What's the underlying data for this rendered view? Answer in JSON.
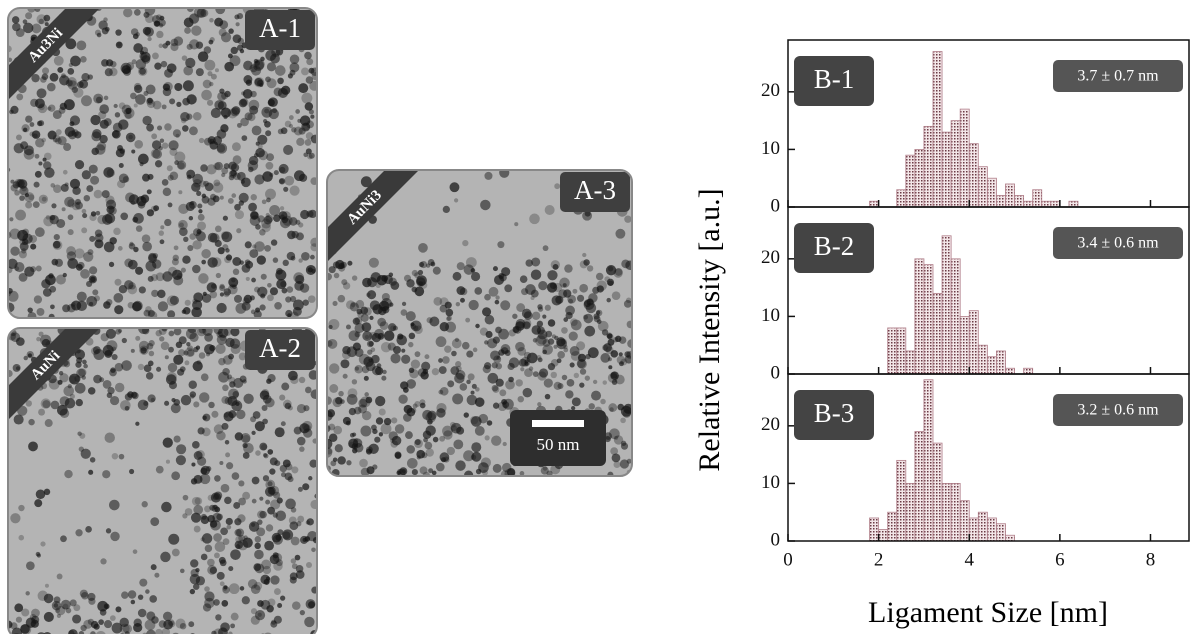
{
  "images": [
    {
      "label": "A-1",
      "composition": "Au3Ni"
    },
    {
      "label": "A-2",
      "composition": "AuNi"
    },
    {
      "label": "A-3",
      "composition": "AuNi3",
      "scale_bar": "50 nm"
    }
  ],
  "figure": {
    "xlabel": "Ligament Size [nm]",
    "ylabel": "Relative Intensity [a.u.]"
  },
  "chart_data": [
    {
      "type": "histogram",
      "title": "B-1",
      "annotation": "3.7 ± 0.7 nm",
      "color": "#b07f8a",
      "bins": [
        1.8,
        2.0,
        2.2,
        2.4,
        2.6,
        2.8,
        3.0,
        3.2,
        3.4,
        3.6,
        3.8,
        4.0,
        4.2,
        4.4,
        4.6,
        4.8,
        5.0,
        5.2,
        5.4,
        5.6,
        5.8,
        6.0,
        6.2,
        6.4
      ],
      "values": [
        1,
        0,
        0,
        3,
        9,
        10,
        14,
        27,
        13,
        15,
        17,
        11,
        7,
        5,
        2,
        4,
        2,
        1,
        3,
        1,
        1,
        0,
        1
      ],
      "xlim": [
        0,
        8.85
      ],
      "xticks": [
        0,
        2,
        4,
        6,
        8
      ],
      "ylim": [
        0,
        29
      ],
      "yticks": [
        0,
        10,
        20
      ]
    },
    {
      "type": "histogram",
      "title": "B-2",
      "annotation": "3.4 ± 0.6 nm",
      "color": "#b07f8a",
      "bins": [
        1.8,
        2.0,
        2.2,
        2.4,
        2.6,
        2.8,
        3.0,
        3.2,
        3.4,
        3.6,
        3.8,
        4.0,
        4.2,
        4.4,
        4.6,
        4.8,
        5.0,
        5.2,
        5.4,
        5.6,
        5.8,
        6.0,
        6.2,
        6.4
      ],
      "values": [
        0,
        0,
        8,
        8,
        4,
        20,
        19,
        14,
        24,
        20,
        10,
        11,
        5,
        3,
        4,
        1,
        0,
        1,
        0,
        0,
        0,
        0,
        0
      ],
      "xlim": [
        0,
        8.85
      ],
      "xticks": [
        0,
        2,
        4,
        6,
        8
      ],
      "ylim": [
        0,
        29
      ],
      "yticks": [
        0,
        10,
        20
      ]
    },
    {
      "type": "histogram",
      "title": "B-3",
      "annotation": "3.2 ± 0.6 nm",
      "color": "#b07f8a",
      "bins": [
        1.8,
        2.0,
        2.2,
        2.4,
        2.6,
        2.8,
        3.0,
        3.2,
        3.4,
        3.6,
        3.8,
        4.0,
        4.2,
        4.4,
        4.6,
        4.8,
        5.0,
        5.2,
        5.4,
        5.6,
        5.8,
        6.0,
        6.2,
        6.4
      ],
      "values": [
        4,
        2,
        5,
        14,
        10,
        19,
        28,
        17,
        10,
        10,
        7,
        4,
        5,
        4,
        3,
        1,
        0,
        0,
        0,
        0,
        0,
        0,
        0
      ],
      "xlim": [
        0,
        8.85
      ],
      "xticks": [
        0,
        2,
        4,
        6,
        8
      ],
      "ylim": [
        0,
        29
      ],
      "yticks": [
        0,
        10,
        20
      ]
    }
  ]
}
